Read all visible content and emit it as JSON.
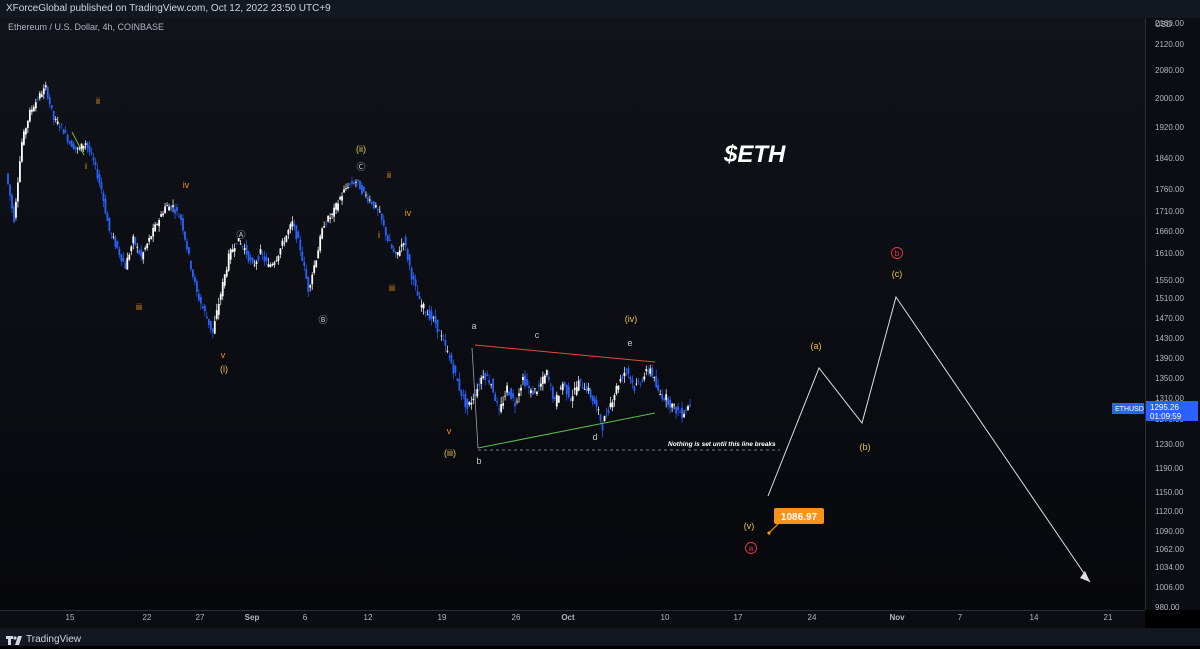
{
  "header": {
    "published": "XForceGlobal published on TradingView.com, Oct 12, 2022 23:50 UTC+9"
  },
  "legend": "Ethereum / U.S. Dollar, 4h, COINBASE",
  "footer": {
    "brand": "TradingView"
  },
  "colors": {
    "up": "#ffffff",
    "down": "#2962ff",
    "orange": "#f7931a",
    "yellow": "#e8c54a",
    "red": "#f23645",
    "green": "#4caf50",
    "white": "#d1d4dc"
  },
  "chart_data": {
    "type": "candlestick",
    "title": "$ETH",
    "symbol": "ETHUSD",
    "currency": "USD",
    "last_price": "1295.26",
    "countdown": "01:09:59",
    "price_ticks": [
      "2160.00",
      "2120.00",
      "2080.00",
      "2000.00",
      "1920.00",
      "1840.00",
      "1760.00",
      "1710.00",
      "1660.00",
      "1610.00",
      "1550.00",
      "1510.00",
      "1470.00",
      "1430.00",
      "1390.00",
      "1350.00",
      "1310.00",
      "1270.00",
      "1230.00",
      "1190.00",
      "1150.00",
      "1120.00",
      "1090.00",
      "1062.00",
      "1034.00",
      "1006.00",
      "980.00"
    ],
    "time_ticks": [
      "15",
      "22",
      "27",
      "Sep",
      "6",
      "12",
      "19",
      "26",
      "Oct",
      "10",
      "17",
      "24",
      "Nov",
      "7",
      "14",
      "21"
    ],
    "price_path": [
      1800,
      1690,
      1880,
      1960,
      2000,
      2030,
      1940,
      1920,
      1880,
      1860,
      1880,
      1830,
      1760,
      1660,
      1620,
      1580,
      1640,
      1600,
      1640,
      1680,
      1720,
      1720,
      1690,
      1600,
      1520,
      1480,
      1440,
      1520,
      1600,
      1640,
      1620,
      1580,
      1610,
      1580,
      1600,
      1640,
      1680,
      1620,
      1530,
      1600,
      1680,
      1700,
      1740,
      1770,
      1780,
      1750,
      1730,
      1700,
      1640,
      1600,
      1640,
      1560,
      1500,
      1480,
      1460,
      1420,
      1380,
      1330,
      1290,
      1320,
      1360,
      1340,
      1280,
      1330,
      1300,
      1350,
      1320,
      1330,
      1360,
      1300,
      1340,
      1310,
      1340,
      1330,
      1300,
      1260,
      1300,
      1340,
      1370,
      1330,
      1350,
      1370,
      1320,
      1310,
      1290,
      1280,
      1300
    ],
    "target_label": "1086.97",
    "target_price": 1086.97,
    "annotation": "Nothing is set until this line breaks",
    "breaks_level": 1220,
    "triangle_upper": [
      [
        1410,
        1385
      ]
    ],
    "projection": [
      [
        1130
      ],
      [
        1370
      ],
      [
        1265
      ],
      [
        1510
      ],
      [
        1000
      ]
    ],
    "wave_labels": [
      {
        "text": "ii",
        "color": "orange"
      },
      {
        "text": "i",
        "color": "orange"
      },
      {
        "text": "iv",
        "color": "orange"
      },
      {
        "text": "iii",
        "color": "orange"
      },
      {
        "text": "Ⓐ",
        "color": "white"
      },
      {
        "text": "Ⓑ",
        "color": "white"
      },
      {
        "text": "v",
        "color": "orange"
      },
      {
        "text": "(i)",
        "color": "yellow"
      },
      {
        "text": "(ii)",
        "color": "yellow"
      },
      {
        "text": "Ⓒ",
        "color": "white"
      },
      {
        "text": "ii",
        "color": "orange"
      },
      {
        "text": "i",
        "color": "orange"
      },
      {
        "text": "iv",
        "color": "orange"
      },
      {
        "text": "iii",
        "color": "orange"
      },
      {
        "text": "v",
        "color": "orange"
      },
      {
        "text": "(iii)",
        "color": "yellow"
      },
      {
        "text": "a",
        "color": "white"
      },
      {
        "text": "b",
        "color": "white"
      },
      {
        "text": "c",
        "color": "white"
      },
      {
        "text": "d",
        "color": "white"
      },
      {
        "text": "e",
        "color": "white"
      },
      {
        "text": "(iv)",
        "color": "yellow"
      },
      {
        "text": "(a)",
        "color": "yellow"
      },
      {
        "text": "(b)",
        "color": "yellow"
      },
      {
        "text": "(c)",
        "color": "yellow"
      },
      {
        "text": "b",
        "color": "red"
      },
      {
        "text": "(v)",
        "color": "yellow"
      },
      {
        "text": "a",
        "color": "red"
      }
    ]
  }
}
